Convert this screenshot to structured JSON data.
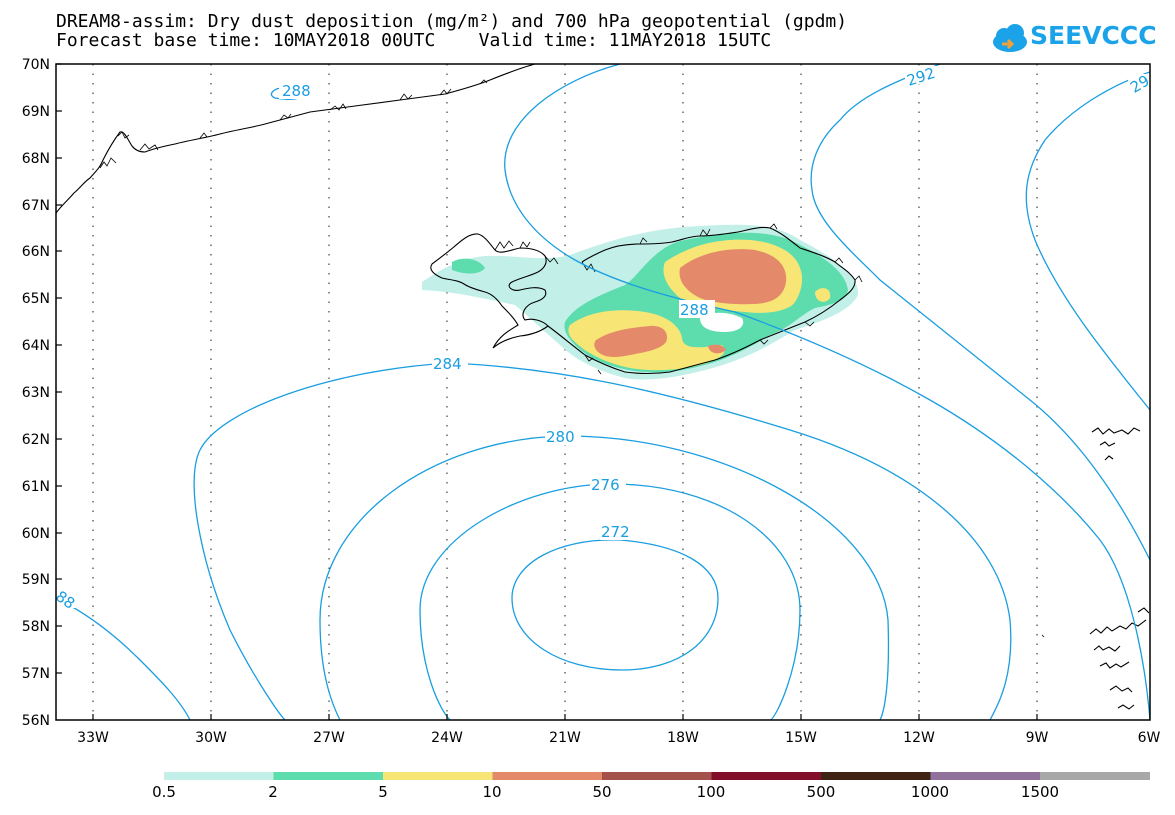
{
  "header": {
    "title_line1": "DREAM8-assim: Dry dust deposition (mg/m²) and 700 hPa geopotential (gpdm)",
    "title_line2": "Forecast base time: 10MAY2018 00UTC    Valid time: 11MAY2018 15UTC",
    "logo_text": "SEEVCCC"
  },
  "map": {
    "lat_labels": [
      "70N",
      "69N",
      "68N",
      "67N",
      "66N",
      "65N",
      "64N",
      "63N",
      "62N",
      "61N",
      "60N",
      "59N",
      "58N",
      "57N",
      "56N"
    ],
    "lon_labels": [
      "33W",
      "30W",
      "27W",
      "24W",
      "21W",
      "18W",
      "15W",
      "12W",
      "9W",
      "6W"
    ],
    "contour_labels": {
      "c288_top": "288",
      "c292": "292",
      "c29_edge": "29",
      "c288_center": "288",
      "c284": "284",
      "c280": "280",
      "c276": "276",
      "c272": "272",
      "c88_edge": "88"
    }
  },
  "colorbar": {
    "labels": [
      "0.5",
      "2",
      "5",
      "10",
      "50",
      "100",
      "500",
      "1000",
      "1500"
    ],
    "colors": [
      "#c2f0e8",
      "#5ddcad",
      "#f7e676",
      "#e5896b",
      "#a3524c",
      "#820e2a",
      "#3e2312",
      "#90719c",
      "#a8a8a8"
    ]
  }
}
